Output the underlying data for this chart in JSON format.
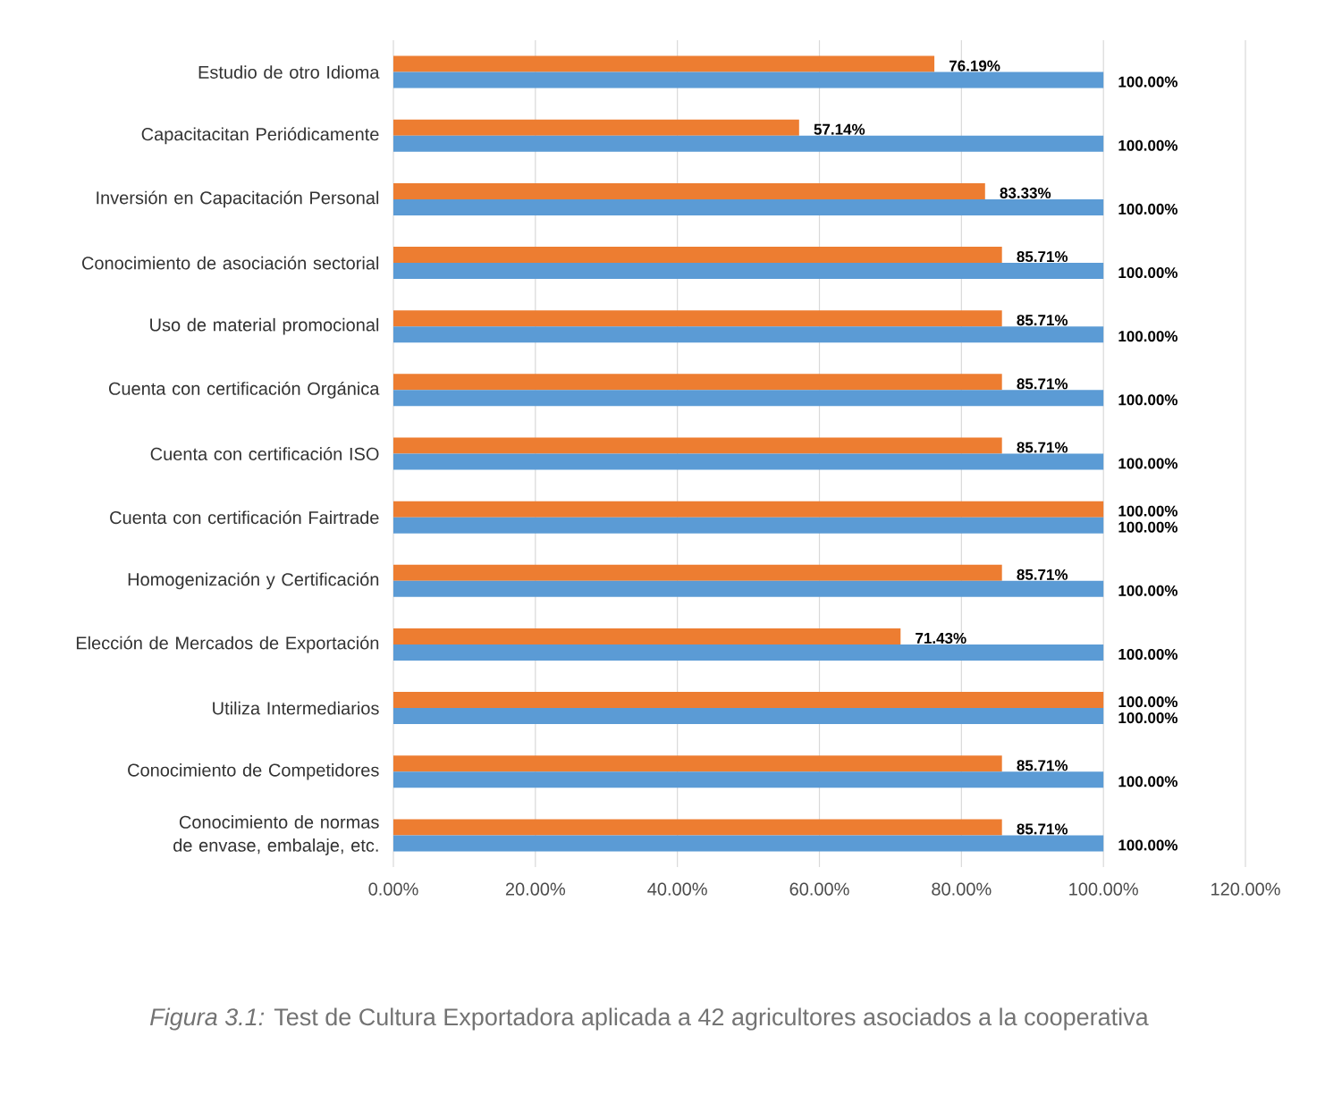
{
  "chart_data": {
    "type": "bar",
    "orientation": "horizontal",
    "categories": [
      "Estudio de otro Idioma",
      "Capacitacitan Periódicamente",
      "Inversión en Capacitación Personal",
      "Conocimiento de asociación sectorial",
      "Uso de material promocional",
      "Cuenta con certificación Orgánica",
      "Cuenta con certificación ISO",
      "Cuenta con certificación Fairtrade",
      "Homogenización y Certificación",
      "Elección de Mercados de Exportación",
      "Utiliza Intermediarios",
      "Conocimiento de Competidores",
      "Conocimiento de normas de envase, embalaje, etc."
    ],
    "series": [
      {
        "color": "#ed7d31",
        "values": [
          76.19,
          57.14,
          83.33,
          85.71,
          85.71,
          85.71,
          85.71,
          100,
          85.71,
          71.43,
          100,
          85.71,
          85.71
        ],
        "value_labels": [
          "76.19%",
          "57.14%",
          "83.33%",
          "85.71%",
          "85.71%",
          "85.71%",
          "85.71%",
          "100.00%",
          "85.71%",
          "71.43%",
          "100.00%",
          "85.71%",
          "85.71%"
        ]
      },
      {
        "color": "#5b9bd5",
        "values": [
          100,
          100,
          100,
          100,
          100,
          100,
          100,
          100,
          100,
          100,
          100,
          100,
          100
        ],
        "value_labels": [
          "100.00%",
          "100.00%",
          "100.00%",
          "100.00%",
          "100.00%",
          "100.00%",
          "100.00%",
          "100.00%",
          "100.00%",
          "100.00%",
          "100.00%",
          "100.00%",
          "100.00%"
        ]
      }
    ],
    "xlim": [
      0,
      120
    ],
    "xticks": [
      {
        "value": 0,
        "label": "0.00%"
      },
      {
        "value": 20,
        "label": "20.00%"
      },
      {
        "value": 40,
        "label": "40.00%"
      },
      {
        "value": 60,
        "label": "60.00%"
      },
      {
        "value": 80,
        "label": "80.00%"
      },
      {
        "value": 100,
        "label": "100.00%"
      },
      {
        "value": 120,
        "label": "120.00%"
      }
    ],
    "grid": "x",
    "annotations": [
      "*Figura 3.1:* Test de Cultura Exportadora aplicada a 42 agricultores asociados a la cooperativa"
    ]
  }
}
